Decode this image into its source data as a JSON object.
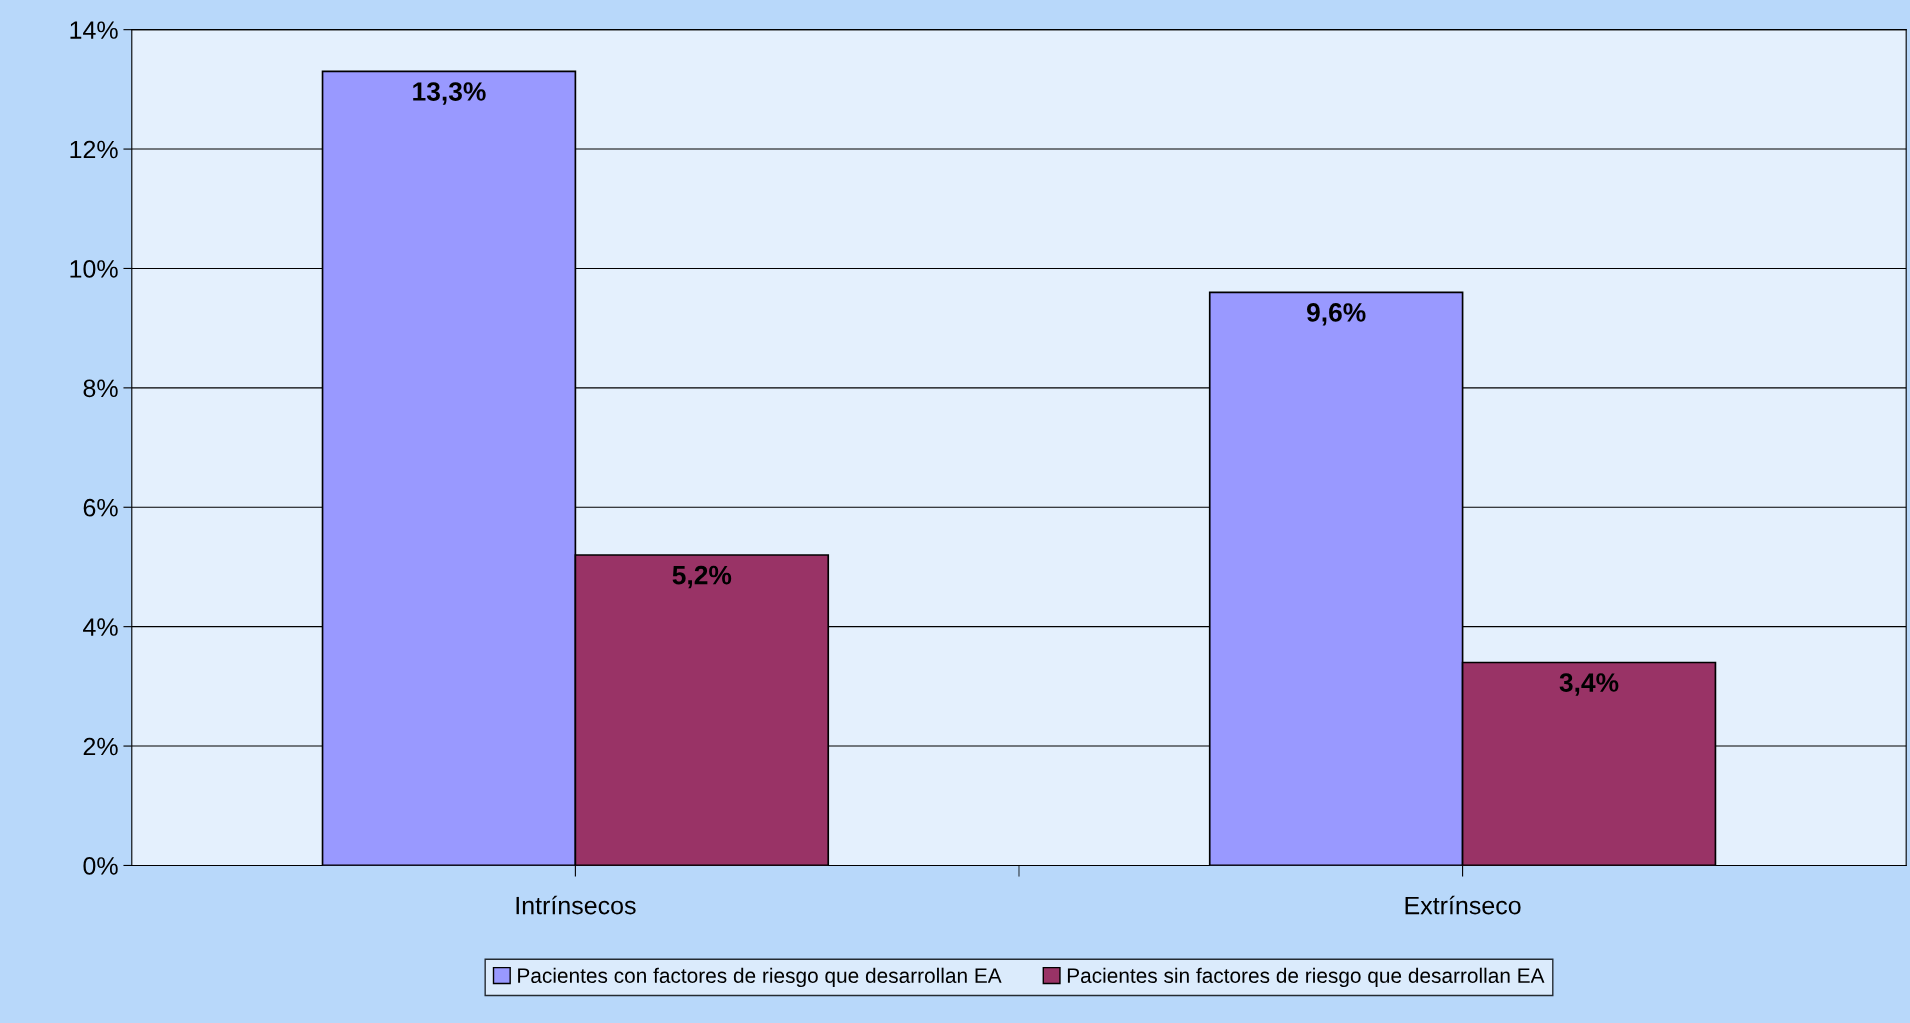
{
  "chart_data": {
    "type": "bar",
    "categories": [
      "Intrínsecos",
      "Extrínseco"
    ],
    "series": [
      {
        "name": "Pacientes con factores de riesgo que desarrollan EA",
        "color": "#9999ff",
        "values": [
          13.3,
          9.6
        ],
        "value_labels": [
          "13,3%",
          "9,6%"
        ]
      },
      {
        "name": "Pacientes sin factores de riesgo que desarrollan EA",
        "color": "#993366",
        "values": [
          5.2,
          3.4
        ],
        "value_labels": [
          "5,2%",
          "3,4%"
        ]
      }
    ],
    "ylim": [
      0,
      14
    ],
    "yticks": [
      {
        "value": 0,
        "label": "0%"
      },
      {
        "value": 2,
        "label": "2%"
      },
      {
        "value": 4,
        "label": "4%"
      },
      {
        "value": 6,
        "label": "6%"
      },
      {
        "value": 8,
        "label": "8%"
      },
      {
        "value": 10,
        "label": "10%"
      },
      {
        "value": 12,
        "label": "12%"
      },
      {
        "value": 14,
        "label": "14%"
      }
    ],
    "grid": "y",
    "legend": "bottom"
  }
}
